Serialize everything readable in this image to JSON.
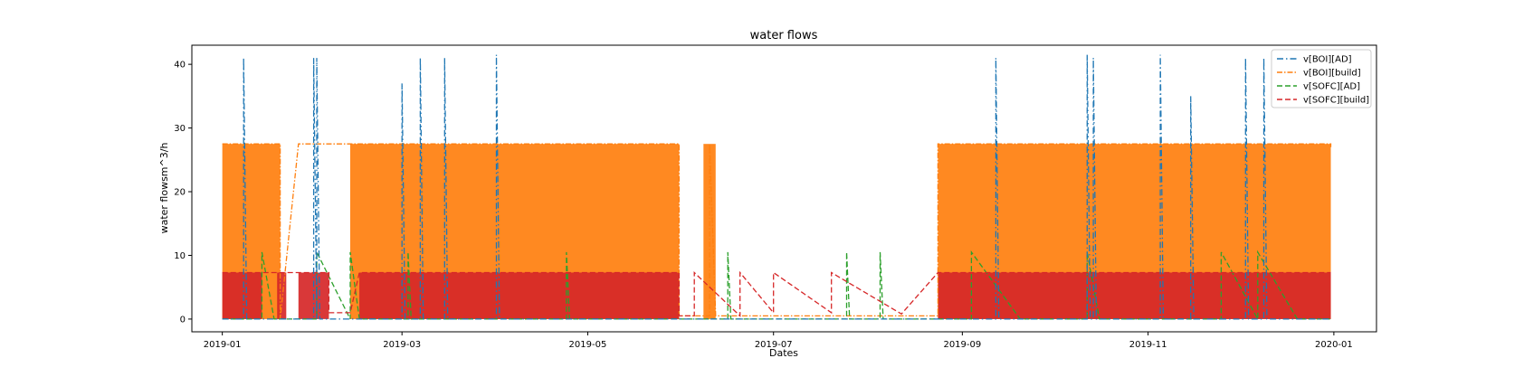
{
  "chart_data": {
    "type": "line",
    "title": "water flows",
    "xlabel": "Dates",
    "ylabel": "water flowsm^3/h",
    "xlim": [
      "2018-12-22",
      "2020-01-15"
    ],
    "ylim": [
      -2,
      43
    ],
    "x_ticks": [
      "2019-01",
      "2019-03",
      "2019-05",
      "2019-07",
      "2019-09",
      "2019-11",
      "2020-01"
    ],
    "y_ticks": [
      0,
      10,
      20,
      30,
      40
    ],
    "grid": false,
    "legend_position": "top-right",
    "series": [
      {
        "name": "v[BOI][AD]",
        "color": "#1f77b4",
        "style": "dashdot-sparse",
        "x": [
          "2019-01-01",
          "2019-01-08",
          "2019-01-08",
          "2019-01-09",
          "2019-01-31",
          "2019-01-31",
          "2019-02-01",
          "2019-02-01",
          "2019-02-02",
          "2019-03-01",
          "2019-03-01",
          "2019-03-02",
          "2019-03-07",
          "2019-03-07",
          "2019-03-08",
          "2019-03-15",
          "2019-03-15",
          "2019-03-16",
          "2019-04-01",
          "2019-04-01",
          "2019-04-02",
          "2019-05-01",
          "2019-06-01",
          "2019-07-01",
          "2019-08-01",
          "2019-09-01",
          "2019-09-12",
          "2019-09-12",
          "2019-09-13",
          "2019-10-12",
          "2019-10-12",
          "2019-10-13",
          "2019-10-14",
          "2019-10-14",
          "2019-10-15",
          "2019-11-05",
          "2019-11-05",
          "2019-11-06",
          "2019-11-15",
          "2019-11-15",
          "2019-11-16",
          "2019-12-03",
          "2019-12-03",
          "2019-12-04",
          "2019-12-09",
          "2019-12-09",
          "2019-12-10",
          "2019-12-31"
        ],
        "y": [
          0,
          0,
          41,
          0,
          0,
          41,
          0,
          41,
          0,
          0,
          37,
          0,
          0,
          41,
          0,
          0,
          41,
          0,
          0,
          41.5,
          0,
          0,
          0,
          0,
          0,
          0,
          0,
          41,
          0,
          0,
          41.5,
          0,
          0,
          41,
          0,
          0,
          41.5,
          0,
          0,
          35,
          0,
          0,
          41,
          0,
          0,
          41,
          0,
          0
        ]
      },
      {
        "name": "v[BOI][build]",
        "color": "#ff7f0e",
        "style": "dashdot",
        "fill_bands": [
          [
            "2019-01-01",
            "2019-01-20",
            27.5
          ],
          [
            "2019-02-12",
            "2019-05-31",
            27.5
          ],
          [
            "2019-06-08",
            "2019-06-12",
            27.5
          ],
          [
            "2019-08-24",
            "2019-12-31",
            27.5
          ]
        ],
        "x": [
          "2019-01-01",
          "2019-01-20",
          "2019-01-20",
          "2019-01-26",
          "2019-02-12",
          "2019-02-12",
          "2019-05-31",
          "2019-05-31",
          "2019-06-10",
          "2019-06-10",
          "2019-06-12",
          "2019-07-01",
          "2019-08-24",
          "2019-08-24",
          "2019-12-31",
          "2019-12-31"
        ],
        "y": [
          27.5,
          27.5,
          0,
          27.5,
          27.5,
          27.5,
          27.5,
          0.5,
          0.5,
          27.5,
          0.5,
          0.5,
          0.5,
          27.5,
          27.5,
          27
        ]
      },
      {
        "name": "v[SOFC][AD]",
        "color": "#2ca02c",
        "style": "dashed",
        "x": [
          "2019-01-01",
          "2019-01-14",
          "2019-01-14",
          "2019-01-18",
          "2019-02-01",
          "2019-02-01",
          "2019-02-12",
          "2019-02-12",
          "2019-02-15",
          "2019-02-15",
          "2019-03-03",
          "2019-03-03",
          "2019-03-04",
          "2019-04-24",
          "2019-04-24",
          "2019-04-25",
          "2019-06-16",
          "2019-06-16",
          "2019-06-17",
          "2019-07-25",
          "2019-07-25",
          "2019-07-26",
          "2019-08-05",
          "2019-08-05",
          "2019-08-06",
          "2019-09-04",
          "2019-09-04",
          "2019-09-20",
          "2019-10-12",
          "2019-10-12",
          "2019-10-16",
          "2019-11-25",
          "2019-11-25",
          "2019-12-07",
          "2019-12-07",
          "2019-12-20",
          "2019-12-31"
        ],
        "y": [
          0,
          0,
          10.5,
          0,
          0,
          10.5,
          0,
          10.5,
          0,
          0,
          0,
          10.5,
          0,
          0,
          10.5,
          0,
          0,
          10.5,
          0,
          0,
          10.5,
          0,
          0,
          10.5,
          0,
          0,
          10.5,
          0,
          0,
          10.5,
          0,
          0,
          10.5,
          0,
          10.5,
          0,
          0
        ]
      },
      {
        "name": "v[SOFC][build]",
        "color": "#d62728",
        "style": "dashed",
        "fill_bands": [
          [
            "2019-01-01",
            "2019-01-14",
            7.3
          ],
          [
            "2019-01-19",
            "2019-01-22",
            7.3
          ],
          [
            "2019-01-26",
            "2019-02-05",
            7.3
          ],
          [
            "2019-02-15",
            "2019-05-31",
            7.3
          ],
          [
            "2019-08-24",
            "2019-12-31",
            7.3
          ]
        ],
        "x": [
          "2019-01-01",
          "2019-01-14",
          "2019-01-14",
          "2019-01-26",
          "2019-02-05",
          "2019-02-05",
          "2019-02-12",
          "2019-02-15",
          "2019-05-31",
          "2019-05-31",
          "2019-06-05",
          "2019-06-05",
          "2019-06-20",
          "2019-06-20",
          "2019-07-01",
          "2019-07-01",
          "2019-07-20",
          "2019-07-20",
          "2019-08-12",
          "2019-08-24",
          "2019-12-31"
        ],
        "y": [
          7.3,
          7.3,
          7.3,
          7.3,
          7.3,
          1,
          1,
          7.3,
          7.3,
          0.5,
          0.5,
          7.3,
          0.5,
          7.3,
          1,
          7.3,
          1,
          7.3,
          0.8,
          7.3,
          7.3
        ]
      }
    ]
  }
}
